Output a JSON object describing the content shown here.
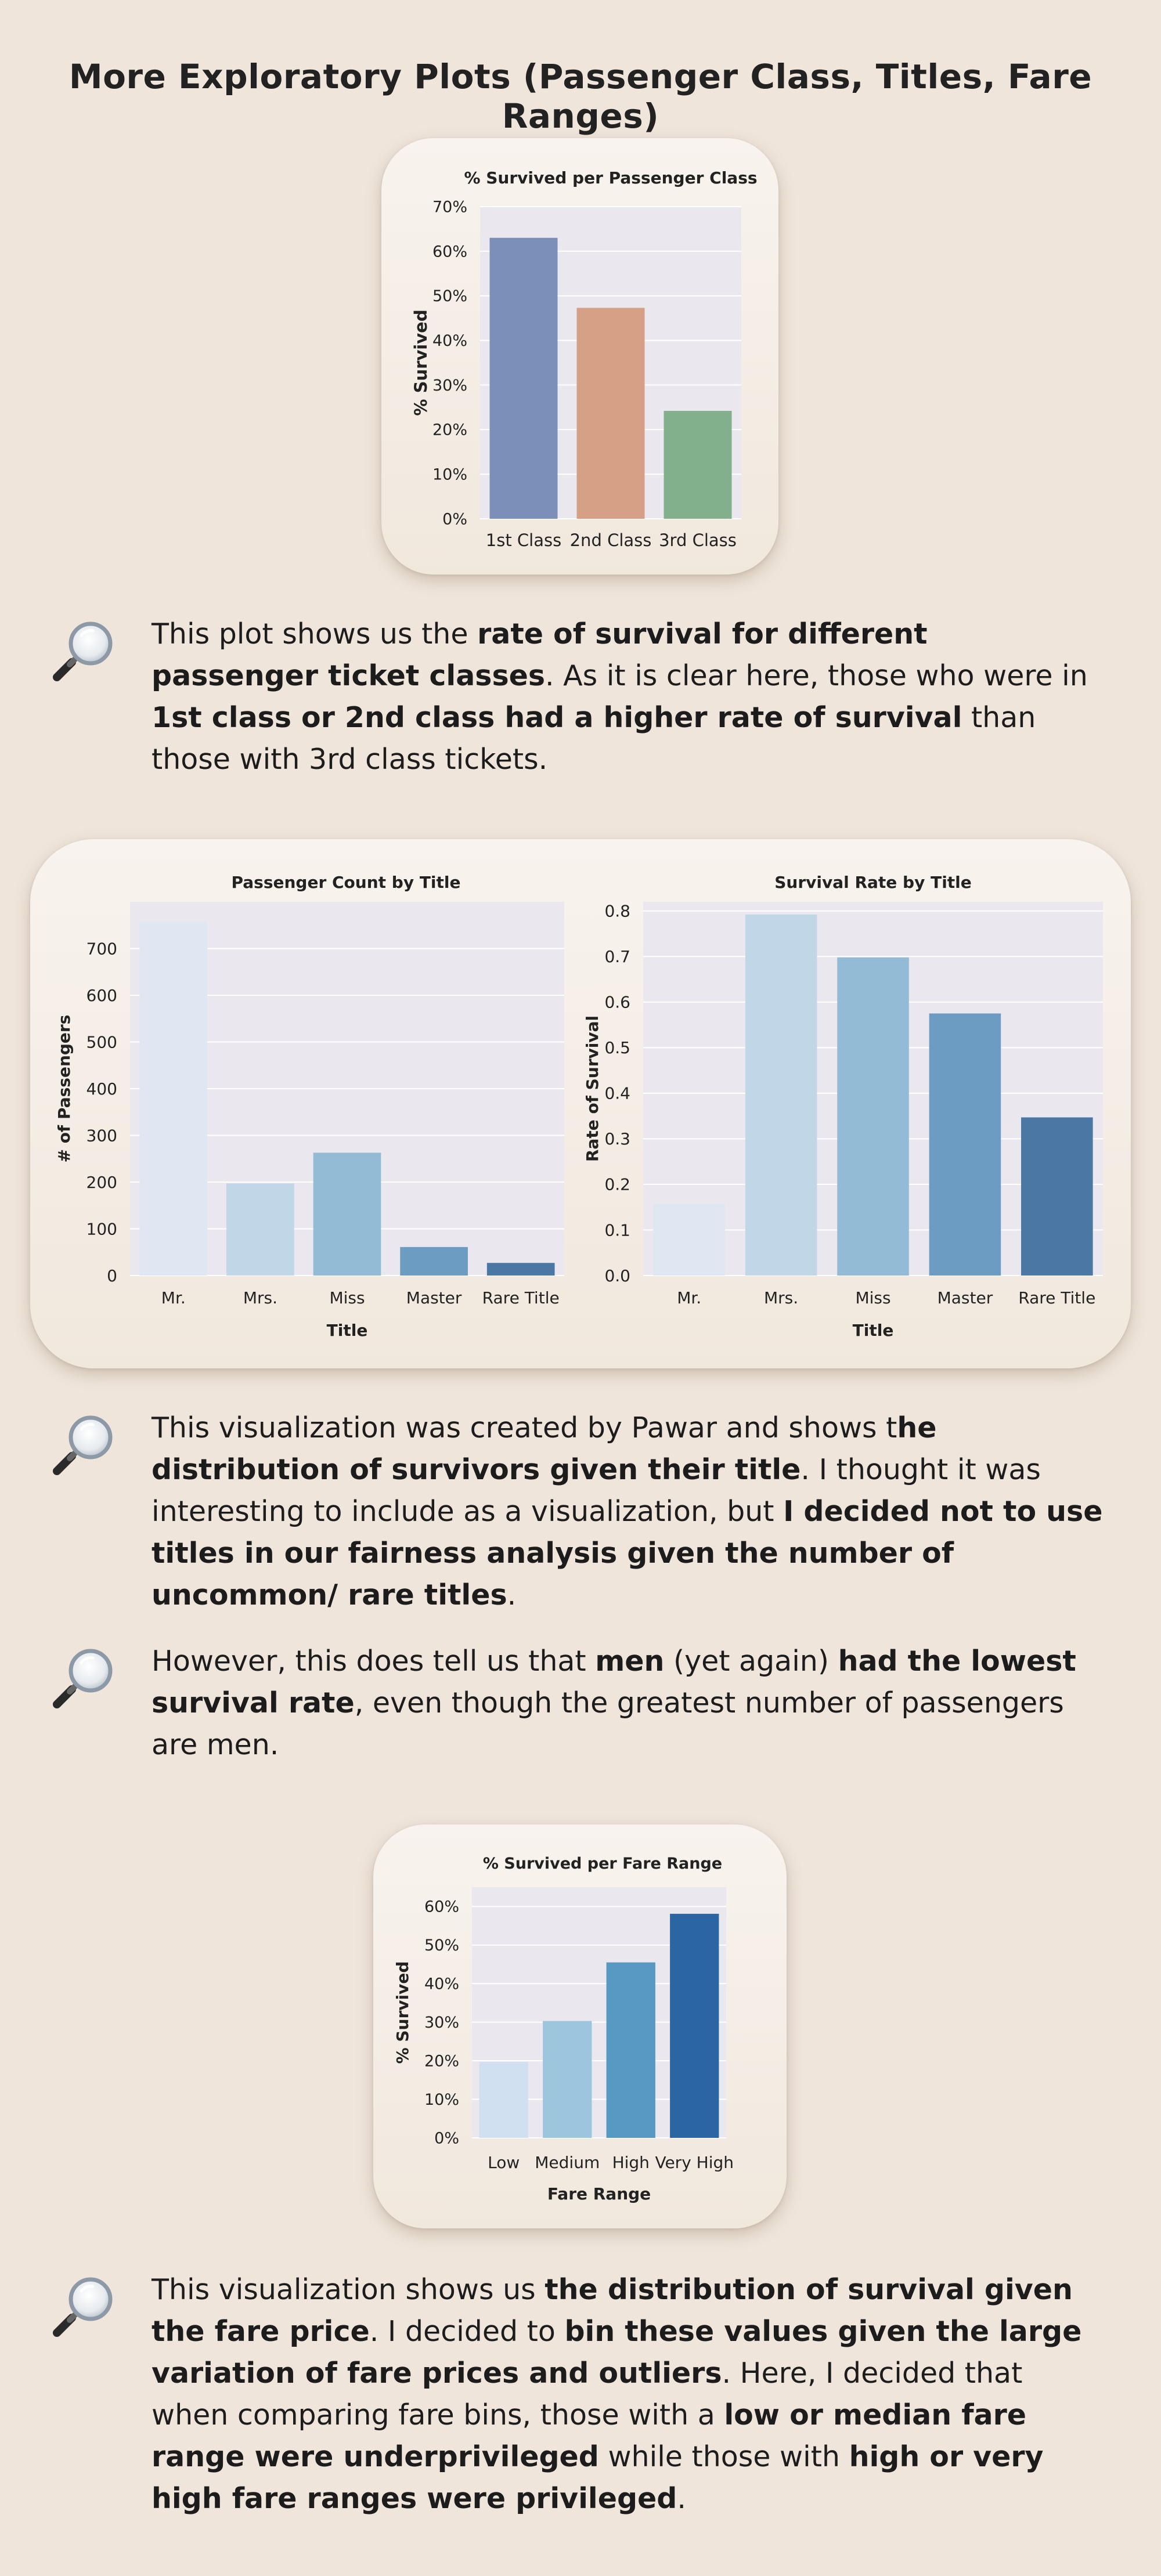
{
  "page": {
    "title": "More Exploratory Plots (Passenger Class, Titles, Fare Ranges)"
  },
  "icons": {
    "paragraph_icon": "magnifying-glass-icon"
  },
  "chart_data": [
    {
      "type": "bar",
      "title": "% Survived per Passenger Class",
      "xlabel": "",
      "ylabel": "% Survived",
      "categories": [
        "1st Class",
        "2nd Class",
        "3rd Class"
      ],
      "values": [
        63,
        47.3,
        24.2
      ],
      "ylim": [
        0,
        70
      ],
      "yticks": [
        "0%",
        "10%",
        "20%",
        "30%",
        "40%",
        "50%",
        "60%",
        "70%"
      ],
      "colors": [
        "#7b8fb8",
        "#d5a086",
        "#82b08c"
      ],
      "grid": true
    },
    {
      "type": "bar",
      "title": "Passenger Count by Title",
      "xlabel": "Title",
      "ylabel": "# of Passengers",
      "categories": [
        "Mr.",
        "Mrs.",
        "Miss",
        "Master",
        "Rare Title"
      ],
      "values": [
        757,
        197,
        263,
        61,
        27
      ],
      "ylim": [
        0,
        800
      ],
      "yticks": [
        "0",
        "100",
        "200",
        "300",
        "400",
        "500",
        "600",
        "700"
      ],
      "colors": [
        "#dfe7f2",
        "#c1d6e6",
        "#93bbd6",
        "#6c9cc2",
        "#4b77a5"
      ],
      "grid": true
    },
    {
      "type": "bar",
      "title": "Survival Rate by Title",
      "xlabel": "Title",
      "ylabel": "Rate of Survival",
      "categories": [
        "Mr.",
        "Mrs.",
        "Miss",
        "Master",
        "Rare Title"
      ],
      "values": [
        0.157,
        0.792,
        0.698,
        0.575,
        0.347
      ],
      "ylim": [
        0,
        0.82
      ],
      "yticks": [
        "0.0",
        "0.1",
        "0.2",
        "0.3",
        "0.4",
        "0.5",
        "0.6",
        "0.7",
        "0.8"
      ],
      "colors": [
        "#dfe7f2",
        "#c1d6e6",
        "#93bbd6",
        "#6c9cc2",
        "#4b77a5"
      ],
      "grid": true
    },
    {
      "type": "bar",
      "title": "% Survived per Fare Range",
      "xlabel": "Fare Range",
      "ylabel": "% Survived",
      "categories": [
        "Low",
        "Medium",
        "High",
        "Very High"
      ],
      "values": [
        19.7,
        30.3,
        45.5,
        58.1
      ],
      "ylim": [
        0,
        65
      ],
      "yticks": [
        "0%",
        "10%",
        "20%",
        "30%",
        "40%",
        "50%",
        "60%"
      ],
      "colors": [
        "#d0e0f0",
        "#9cc6dd",
        "#5899c4",
        "#2c66a2"
      ],
      "grid": true
    }
  ],
  "paragraphs": [
    [
      {
        "t": "This plot shows us the ",
        "b": false
      },
      {
        "t": "rate of survival for different passenger ticket classes",
        "b": true
      },
      {
        "t": ". As it is clear here, those who were in ",
        "b": false
      },
      {
        "t": "1st class or 2nd class had a higher rate of survival",
        "b": true
      },
      {
        "t": " than those with 3rd class tickets.",
        "b": false
      }
    ],
    [
      {
        "t": "This visualization was created by Pawar and shows t",
        "b": false
      },
      {
        "t": "he distribution of survivors given their title",
        "b": true
      },
      {
        "t": ". I thought it was interesting to include as a visualization, but ",
        "b": false
      },
      {
        "t": "I decided not to use titles in our fairness analysis given the number of uncommon/ rare titles",
        "b": true
      },
      {
        "t": ".",
        "b": false
      }
    ],
    [
      {
        "t": "However, this does tell us that ",
        "b": false
      },
      {
        "t": "men",
        "b": true
      },
      {
        "t": " (yet again) ",
        "b": false
      },
      {
        "t": "had the lowest survival rate",
        "b": true
      },
      {
        "t": ", even though the greatest number of passengers are men.",
        "b": false
      }
    ],
    [
      {
        "t": "This visualization shows us ",
        "b": false
      },
      {
        "t": "the distribution of survival given the fare price",
        "b": true
      },
      {
        "t": ". I decided to ",
        "b": false
      },
      {
        "t": "bin these values given the large variation of fare prices and outliers",
        "b": true
      },
      {
        "t": ". Here, I decided that when comparing fare bins, those with a ",
        "b": false
      },
      {
        "t": "low or median fare range were underprivileged",
        "b": true
      },
      {
        "t": " while those with ",
        "b": false
      },
      {
        "t": "high or very high fare ranges were privileged",
        "b": true
      },
      {
        "t": ".",
        "b": false
      }
    ]
  ]
}
